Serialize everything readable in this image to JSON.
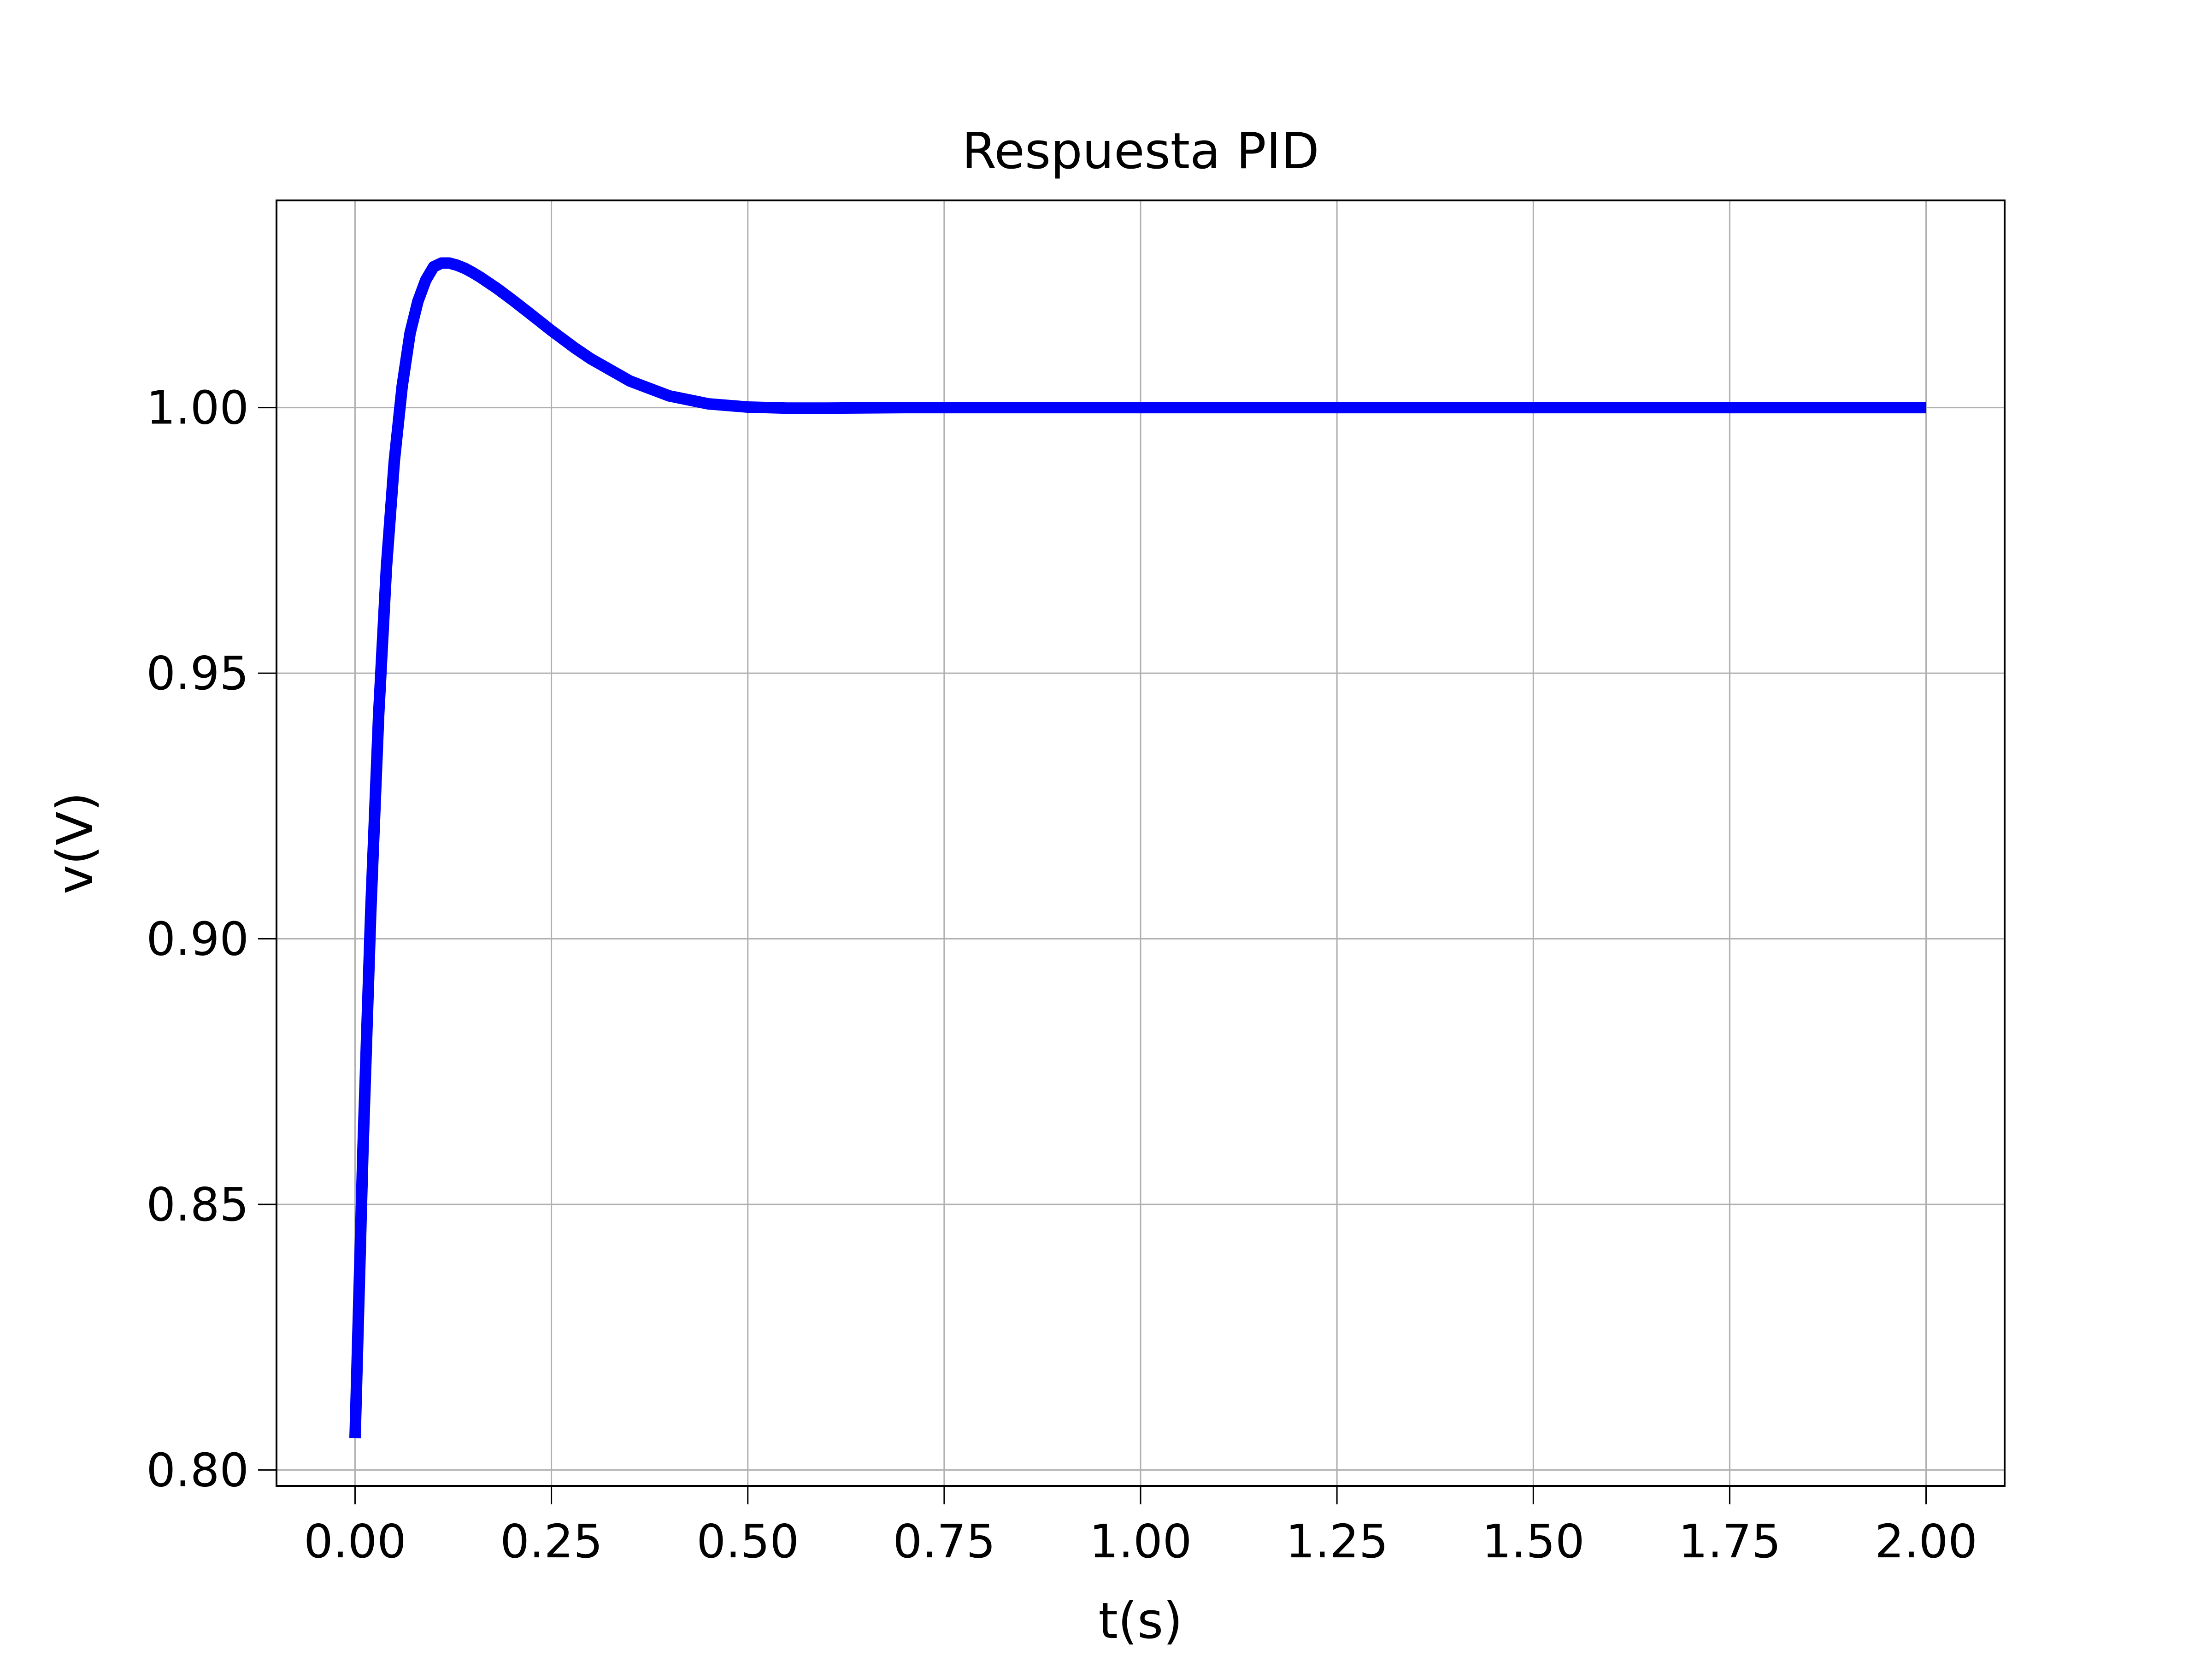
{
  "chart_data": {
    "type": "line",
    "title": "Respuesta PID",
    "xlabel": "t(s)",
    "ylabel": "v(V)",
    "xlim": [
      -0.1,
      2.1
    ],
    "ylim": [
      0.797,
      1.039
    ],
    "x_ticks": [
      0.0,
      0.25,
      0.5,
      0.75,
      1.0,
      1.25,
      1.5,
      1.75,
      2.0
    ],
    "x_tick_labels": [
      "0.00",
      "0.25",
      "0.50",
      "0.75",
      "1.00",
      "1.25",
      "1.50",
      "1.75",
      "2.00"
    ],
    "y_ticks": [
      0.8,
      0.85,
      0.9,
      0.95,
      1.0
    ],
    "y_tick_labels": [
      "0.80",
      "0.85",
      "0.90",
      "0.95",
      "1.00"
    ],
    "grid": true,
    "series": [
      {
        "color": "#0000ff",
        "x": [
          0.0,
          0.01,
          0.02,
          0.03,
          0.04,
          0.05,
          0.06,
          0.07,
          0.08,
          0.09,
          0.1,
          0.11,
          0.12,
          0.13,
          0.14,
          0.15,
          0.16,
          0.18,
          0.2,
          0.22,
          0.25,
          0.28,
          0.3,
          0.35,
          0.4,
          0.45,
          0.5,
          0.55,
          0.6,
          0.7,
          0.8,
          1.0,
          1.25,
          1.5,
          1.75,
          2.0
        ],
        "y": [
          0.806,
          0.86,
          0.905,
          0.942,
          0.97,
          0.99,
          1.004,
          1.014,
          1.02,
          1.024,
          1.0265,
          1.0272,
          1.0272,
          1.0268,
          1.0262,
          1.0254,
          1.0245,
          1.0225,
          1.0203,
          1.018,
          1.0145,
          1.0112,
          1.0092,
          1.005,
          1.0022,
          1.0007,
          1.0001,
          0.9999,
          0.9999,
          1.0,
          1.0,
          1.0,
          1.0,
          1.0,
          1.0,
          1.0
        ]
      }
    ]
  }
}
